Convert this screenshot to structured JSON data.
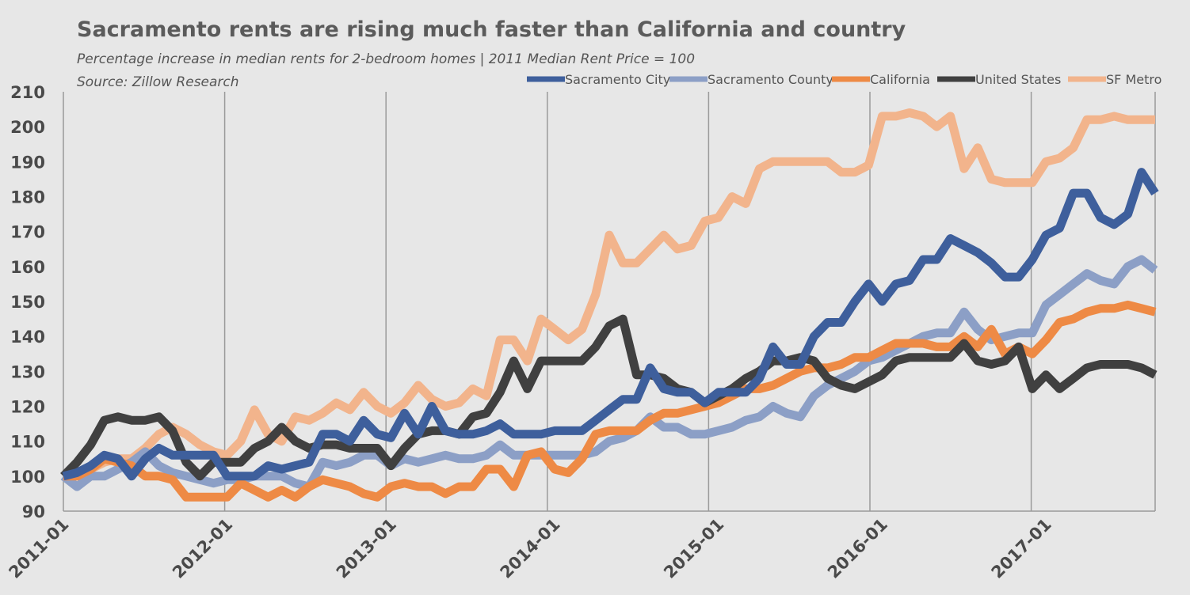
{
  "chart_data": {
    "type": "line",
    "title": "Sacramento rents are rising much faster than California and country",
    "subtitle": "Percentage increase in median rents for 2-bedroom homes | 2011 Median Rent Price = 100",
    "source": "Source: Zillow Research",
    "xlabel": "",
    "ylabel": "",
    "ylim": [
      90,
      210
    ],
    "yticks": [
      "210",
      "200",
      "190",
      "180",
      "170",
      "160",
      "150",
      "140",
      "130",
      "120",
      "110",
      "100",
      "90"
    ],
    "xticks": [
      "2011-01",
      "2012-01",
      "2013-01",
      "2014-01",
      "2015-01",
      "2016-01",
      "2017-01"
    ],
    "grid": "vertical at each year",
    "legend_position": "top-right",
    "series": [
      {
        "name": "SF Metro",
        "color": "#f2b48c",
        "values": [
          100,
          101,
          102,
          104,
          105,
          105,
          108,
          112,
          114,
          112,
          109,
          107,
          106,
          110,
          119,
          112,
          110,
          117,
          116,
          118,
          121,
          119,
          124,
          120,
          118,
          121,
          126,
          122,
          120,
          121,
          125,
          123,
          139,
          139,
          133,
          145,
          142,
          139,
          142,
          152,
          169,
          161,
          161,
          165,
          169,
          165,
          166,
          173,
          174,
          180,
          178,
          188,
          190,
          190,
          190,
          190,
          190,
          187,
          187,
          189,
          203,
          203,
          204,
          203,
          200,
          203,
          188,
          194,
          185,
          184,
          184,
          184,
          190,
          191,
          194,
          202,
          202,
          203,
          202,
          202,
          202
        ]
      },
      {
        "name": "Sacramento County",
        "color": "#8c9fc6",
        "values": [
          100,
          97,
          100,
          100,
          102,
          104,
          107,
          103,
          101,
          100,
          99,
          98,
          99,
          99,
          100,
          100,
          100,
          98,
          97,
          104,
          103,
          104,
          106,
          106,
          103,
          105,
          104,
          105,
          106,
          105,
          105,
          106,
          109,
          106,
          106,
          106,
          106,
          106,
          106,
          107,
          110,
          111,
          113,
          117,
          114,
          114,
          112,
          112,
          113,
          114,
          116,
          117,
          120,
          118,
          117,
          123,
          126,
          128,
          130,
          133,
          134,
          136,
          138,
          140,
          141,
          141,
          147,
          142,
          139,
          140,
          141,
          141,
          149,
          152,
          155,
          158,
          156,
          155,
          160,
          162,
          159
        ]
      },
      {
        "name": "California",
        "color": "#ee8a45",
        "values": [
          100,
          100,
          102,
          105,
          104,
          103,
          100,
          100,
          99,
          94,
          94,
          94,
          94,
          98,
          96,
          94,
          96,
          94,
          97,
          99,
          98,
          97,
          95,
          94,
          97,
          98,
          97,
          97,
          95,
          97,
          97,
          102,
          102,
          97,
          106,
          107,
          102,
          101,
          105,
          112,
          113,
          113,
          113,
          116,
          118,
          118,
          119,
          120,
          121,
          123,
          125,
          125,
          126,
          128,
          130,
          131,
          131,
          132,
          134,
          134,
          136,
          138,
          138,
          138,
          137,
          137,
          140,
          137,
          142,
          135,
          137,
          135,
          139,
          144,
          145,
          147,
          148,
          148,
          149,
          148,
          147
        ]
      },
      {
        "name": "United States",
        "color": "#404040",
        "values": [
          100,
          104,
          109,
          116,
          117,
          116,
          116,
          117,
          113,
          104,
          100,
          104,
          104,
          104,
          108,
          110,
          114,
          110,
          108,
          109,
          109,
          108,
          108,
          108,
          103,
          108,
          112,
          113,
          113,
          112,
          117,
          118,
          124,
          133,
          125,
          133,
          133,
          133,
          133,
          137,
          143,
          145,
          129,
          129,
          128,
          125,
          124,
          121,
          123,
          125,
          128,
          130,
          133,
          133,
          134,
          133,
          128,
          126,
          125,
          127,
          129,
          133,
          134,
          134,
          134,
          134,
          138,
          133,
          132,
          133,
          137,
          125,
          129,
          125,
          128,
          131,
          132,
          132,
          132,
          131,
          129
        ]
      },
      {
        "name": "Sacramento City",
        "color": "#3e5f9c",
        "values": [
          100,
          101,
          103,
          106,
          105,
          100,
          105,
          108,
          106,
          106,
          106,
          106,
          100,
          100,
          100,
          103,
          102,
          103,
          104,
          112,
          112,
          110,
          116,
          112,
          111,
          118,
          112,
          120,
          113,
          112,
          112,
          113,
          115,
          112,
          112,
          112,
          113,
          113,
          113,
          116,
          119,
          122,
          122,
          131,
          125,
          124,
          124,
          121,
          124,
          124,
          124,
          128,
          137,
          132,
          132,
          140,
          144,
          144,
          150,
          155,
          150,
          155,
          156,
          162,
          162,
          168,
          166,
          164,
          161,
          157,
          157,
          162,
          169,
          171,
          181,
          181,
          174,
          172,
          175,
          187,
          181
        ]
      }
    ],
    "legend": [
      "Sacramento City",
      "Sacramento County",
      "California",
      "United States",
      "SF Metro"
    ]
  }
}
